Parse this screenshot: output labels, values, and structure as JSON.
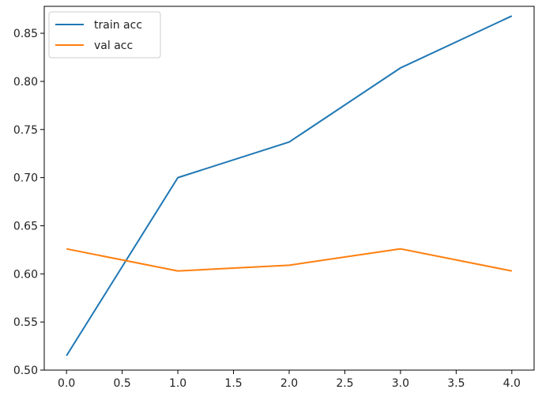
{
  "chart_data": {
    "type": "line",
    "title": "",
    "xlabel": "",
    "ylabel": "",
    "x": [
      0,
      1,
      2,
      3,
      4
    ],
    "xlim": [
      -0.2,
      4.2
    ],
    "ylim": [
      0.5,
      0.878
    ],
    "xticks": [
      0.0,
      0.5,
      1.0,
      1.5,
      2.0,
      2.5,
      3.0,
      3.5,
      4.0
    ],
    "yticks": [
      0.5,
      0.55,
      0.6,
      0.65,
      0.7,
      0.75,
      0.8,
      0.85
    ],
    "grid": false,
    "legend_position": "top-left",
    "series": [
      {
        "name": "train acc",
        "color": "#1f77b4",
        "values": [
          0.515,
          0.7,
          0.737,
          0.814,
          0.868
        ]
      },
      {
        "name": "val acc",
        "color": "#ff7f0e",
        "values": [
          0.626,
          0.603,
          0.609,
          0.626,
          0.603
        ]
      }
    ]
  }
}
